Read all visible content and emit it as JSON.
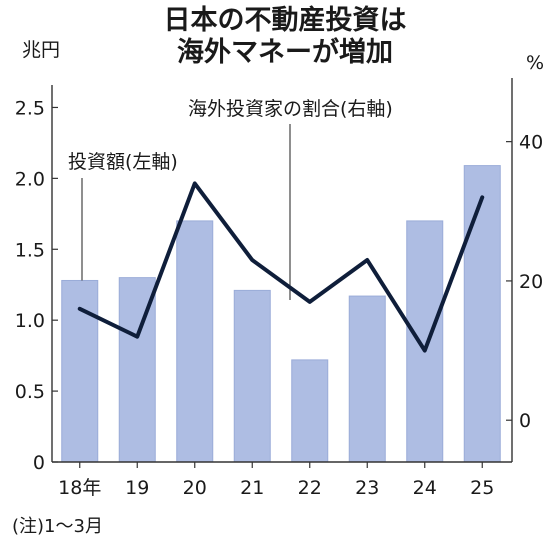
{
  "chart_data": {
    "type": "bar",
    "title": [
      "日本の不動産投資は",
      "海外マネーが増加"
    ],
    "categories": [
      "18年",
      "19",
      "20",
      "21",
      "22",
      "23",
      "24",
      "25"
    ],
    "y_left_unit": "兆円",
    "y_right_unit": "%",
    "ylim_left": [
      0,
      2.75
    ],
    "ylim_right": [
      -6,
      50
    ],
    "yticks_left": [
      "0",
      "0.5",
      "1.0",
      "1.5",
      "2.0",
      "2.5"
    ],
    "yticks_right": [
      "0",
      "20",
      "40"
    ],
    "series": [
      {
        "name": "投資額(左軸)",
        "type": "bar",
        "axis": "left",
        "color": "#aebde3",
        "values": [
          1.28,
          1.3,
          1.7,
          1.21,
          0.72,
          1.17,
          1.7,
          2.09
        ]
      },
      {
        "name": "海外投資家の割合(右軸)",
        "type": "line",
        "axis": "right",
        "color": "#0f1e3a",
        "values": [
          16,
          12,
          34,
          23,
          17,
          23,
          10,
          32
        ]
      }
    ],
    "note": "(注)1〜3月",
    "grid": false
  }
}
